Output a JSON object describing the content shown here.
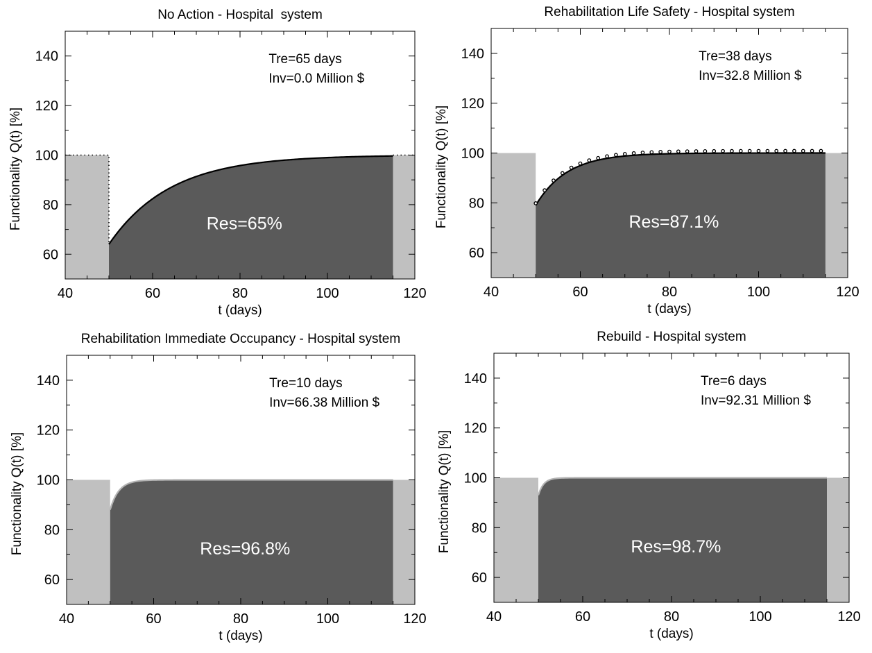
{
  "figure": {
    "panels": [
      {
        "title": "No Action - Hospital  system",
        "annotation_tre": "Tre=65 days",
        "annotation_inv": "Inv=0.0 Million $",
        "residual_label": "Res=65%"
      },
      {
        "title": "Rehabilitation Life Safety - Hospital system",
        "annotation_tre": "Tre=38 days",
        "annotation_inv": "Inv=32.8 Million $",
        "residual_label": "Res=87.1%"
      },
      {
        "title": "Rehabilitation Immediate Occupancy - Hospital system",
        "annotation_tre": "Tre=10 days",
        "annotation_inv": "Inv=66.38 Million $",
        "residual_label": "Res=96.8%"
      },
      {
        "title": "Rebuild - Hospital system",
        "annotation_tre": "Tre=6 days",
        "annotation_inv": "Inv=92.31 Million $",
        "residual_label": "Res=98.7%"
      }
    ]
  },
  "chart_data": [
    {
      "type": "area",
      "title": "No Action - Hospital  system",
      "xlabel": "t (days)",
      "ylabel": "Functionality Q(t) [%]",
      "xlim": [
        40,
        120
      ],
      "ylim": [
        50,
        150
      ],
      "xticks": [
        40,
        60,
        80,
        100,
        120
      ],
      "yticks": [
        60,
        80,
        100,
        120,
        140
      ],
      "grid": false,
      "event_day": 50,
      "recovery_end_day": 115,
      "pre_event_functionality": 100,
      "post_event_functionality": 64,
      "recovery_tau_days": 14,
      "dotted_reference": true,
      "colors": {
        "pre_post_fill": "#c0c0c0",
        "recovery_fill": "#5a5a5a",
        "curve": "#000000"
      }
    },
    {
      "type": "area",
      "title": "Rehabilitation Life Safety - Hospital system",
      "xlabel": "t (days)",
      "ylabel": "Functionality Q(t) [%]",
      "xlim": [
        40,
        120
      ],
      "ylim": [
        50,
        150
      ],
      "xticks": [
        40,
        60,
        80,
        100,
        120
      ],
      "yticks": [
        60,
        80,
        100,
        120,
        140
      ],
      "grid": false,
      "event_day": 50,
      "recovery_end_day": 115,
      "pre_event_functionality": 100,
      "post_event_functionality": 79,
      "recovery_tau_days": 7,
      "dotted_markers": true,
      "colors": {
        "pre_post_fill": "#c0c0c0",
        "recovery_fill": "#5a5a5a",
        "curve": "#000000"
      }
    },
    {
      "type": "area",
      "title": "Rehabilitation Immediate Occupancy - Hospital system",
      "xlabel": "t (days)",
      "ylabel": "Functionality Q(t) [%]",
      "xlim": [
        40,
        120
      ],
      "ylim": [
        50,
        150
      ],
      "xticks": [
        40,
        60,
        80,
        100,
        120
      ],
      "yticks": [
        60,
        80,
        100,
        120,
        140
      ],
      "grid": false,
      "event_day": 50,
      "recovery_end_day": 115,
      "pre_event_functionality": 100,
      "post_event_functionality": 88,
      "recovery_tau_days": 2,
      "colors": {
        "pre_post_fill": "#c0c0c0",
        "recovery_fill": "#5a5a5a",
        "curve": "#b4b4b4"
      }
    },
    {
      "type": "area",
      "title": "Rebuild - Hospital system",
      "xlabel": "t (days)",
      "ylabel": "Functionality Q(t) [%]",
      "xlim": [
        40,
        120
      ],
      "ylim": [
        50,
        150
      ],
      "xticks": [
        40,
        60,
        80,
        100,
        120
      ],
      "yticks": [
        60,
        80,
        100,
        120,
        140
      ],
      "grid": false,
      "event_day": 50,
      "recovery_end_day": 115,
      "pre_event_functionality": 100,
      "post_event_functionality": 93,
      "recovery_tau_days": 1.2,
      "colors": {
        "pre_post_fill": "#c0c0c0",
        "recovery_fill": "#5a5a5a",
        "curve": "#b4b4b4"
      }
    }
  ]
}
